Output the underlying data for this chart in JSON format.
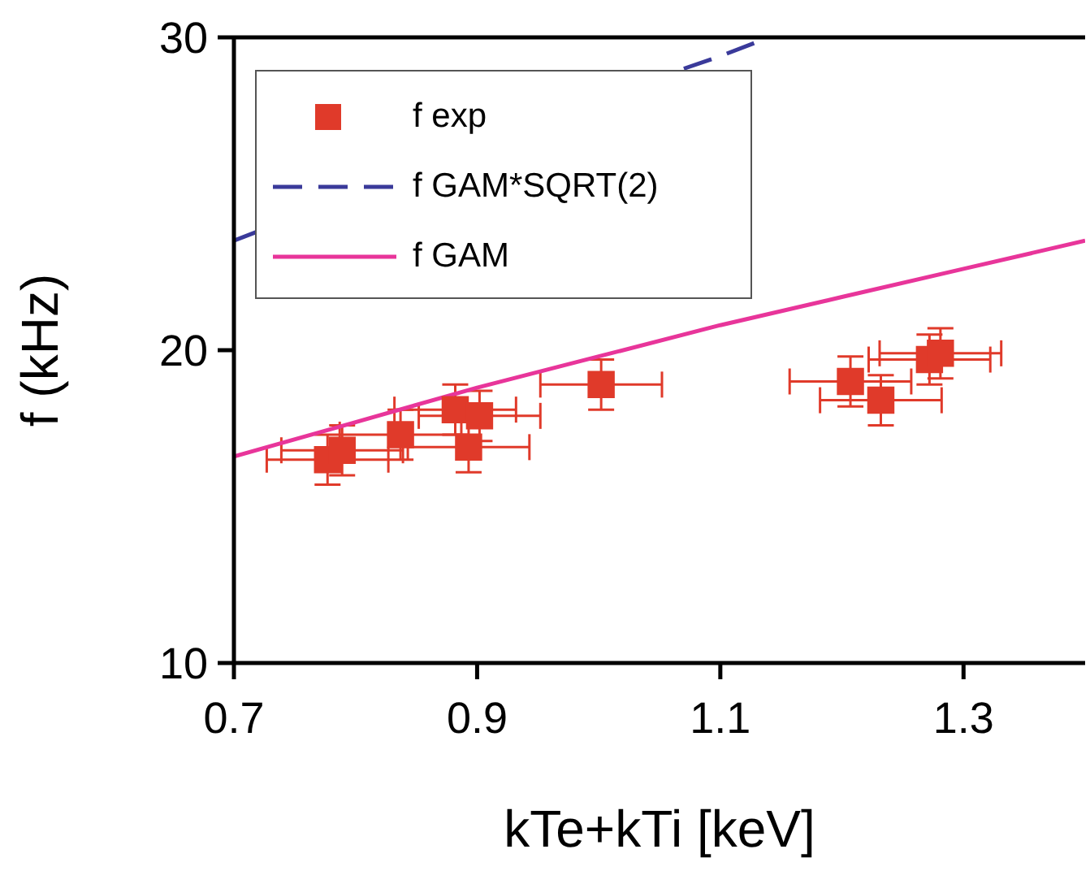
{
  "chart_data": {
    "type": "scatter",
    "xlabel": "kTe+kTi [keV]",
    "ylabel": "f (kHz)",
    "xlim": [
      0.7,
      1.4
    ],
    "xticks": [
      0.7,
      0.9,
      1.1,
      1.3
    ],
    "ylim": [
      10,
      30
    ],
    "yticks": [
      10,
      20,
      30
    ],
    "grid": false,
    "legend": "top left",
    "series": [
      {
        "name": "f exp",
        "marker": "square",
        "color": "#e03a2a",
        "x": [
          0.777,
          0.789,
          0.837,
          0.882,
          0.902,
          0.893,
          1.002,
          1.207,
          1.232,
          1.272,
          1.281
        ],
        "values": [
          16.5,
          16.8,
          17.3,
          18.1,
          17.9,
          16.9,
          18.9,
          19.0,
          18.4,
          19.7,
          19.9
        ],
        "errors": [
          0.8,
          0.8,
          0.8,
          0.8,
          0.8,
          0.8,
          0.8,
          0.8,
          0.8,
          0.8,
          0.8
        ],
        "xerrors": [
          0.05,
          0.05,
          0.05,
          0.05,
          0.05,
          0.05,
          0.05,
          0.05,
          0.05,
          0.05,
          0.05
        ]
      },
      {
        "name": "f GAM*SQRT(2)",
        "type": "line",
        "line_style": "dashed",
        "marker": "none",
        "color": "#3a3a9a",
        "x": [
          0.7,
          0.72,
          0.9,
          1.07,
          1.1,
          1.14
        ],
        "values": [
          23.5,
          23.8,
          null,
          29.0,
          29.4,
          30.0
        ]
      },
      {
        "name": "f GAM",
        "type": "line",
        "line_style": "solid",
        "marker": "none",
        "color": "#e8359a",
        "x": [
          0.7,
          0.8,
          0.9,
          1.0,
          1.1,
          1.2,
          1.3,
          1.4
        ],
        "values": [
          16.6,
          17.7,
          18.8,
          19.8,
          20.8,
          21.7,
          22.6,
          23.5
        ]
      }
    ]
  }
}
